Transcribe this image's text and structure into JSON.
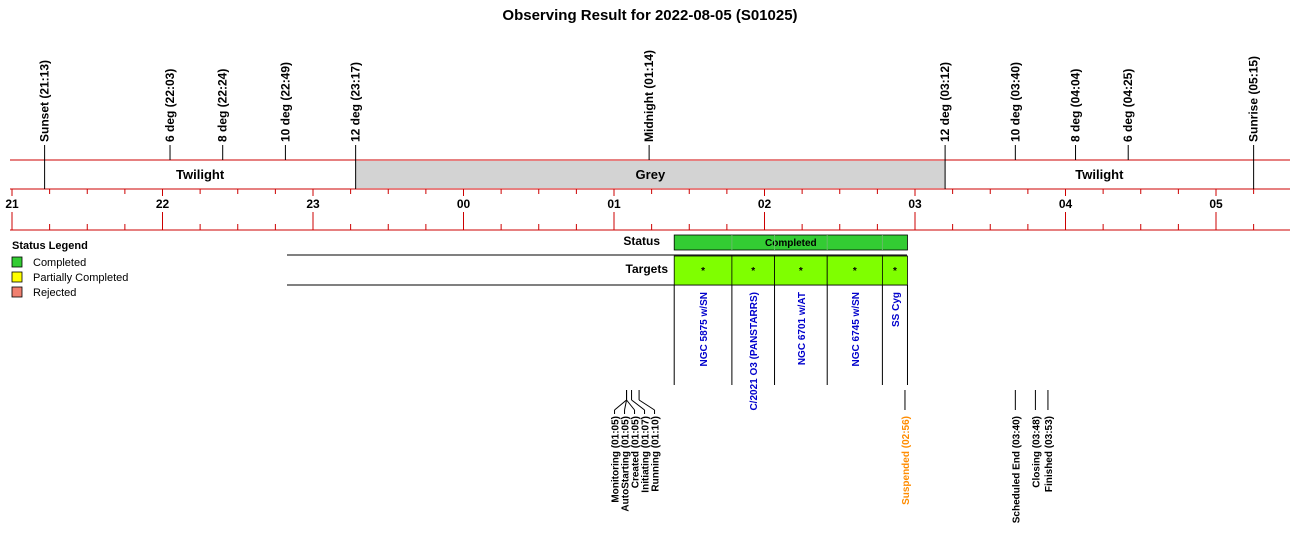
{
  "chart_data": {
    "type": "timeline",
    "title": "Observing Result for 2022-08-05 (S01025)",
    "hours": [
      "21",
      "22",
      "23",
      "00",
      "01",
      "02",
      "03",
      "04",
      "05"
    ],
    "sky_events": [
      {
        "label": "Sunset (21:13)",
        "time": "21:13"
      },
      {
        "label": "6 deg (22:03)",
        "time": "22:03"
      },
      {
        "label": "8 deg (22:24)",
        "time": "22:24"
      },
      {
        "label": "10 deg (22:49)",
        "time": "22:49"
      },
      {
        "label": "12 deg (23:17)",
        "time": "23:17"
      },
      {
        "label": "Midnight (01:14)",
        "time": "01:14"
      },
      {
        "label": "12 deg (03:12)",
        "time": "03:12"
      },
      {
        "label": "10 deg (03:40)",
        "time": "03:40"
      },
      {
        "label": "8 deg (04:04)",
        "time": "04:04"
      },
      {
        "label": "6 deg (04:25)",
        "time": "04:25"
      },
      {
        "label": "Sunrise (05:15)",
        "time": "05:15"
      }
    ],
    "phases": [
      {
        "label": "Twilight",
        "start": "21:13",
        "end": "23:17",
        "color": "#ffffff"
      },
      {
        "label": "Grey",
        "start": "23:17",
        "end": "03:12",
        "color": "#d3d3d3"
      },
      {
        "label": "Twilight",
        "start": "03:12",
        "end": "05:15",
        "color": "#ffffff"
      }
    ],
    "status_row_label": "Status",
    "targets_row_label": "Targets",
    "status_bar": {
      "label": "Completed",
      "start": "01:24",
      "end": "02:57",
      "color": "#33cc33"
    },
    "targets": [
      {
        "name": "NGC 5875 w/SN",
        "start": "01:24",
        "end": "01:47",
        "mark": "*"
      },
      {
        "name": "C/2021 O3 (PANSTARRS)",
        "start": "01:47",
        "end": "02:04",
        "mark": "*"
      },
      {
        "name": "NGC 6701 w/AT",
        "start": "02:04",
        "end": "02:25",
        "mark": "*"
      },
      {
        "name": "NGC 6745 w/SN",
        "start": "02:25",
        "end": "02:47",
        "mark": "*"
      },
      {
        "name": "SS Cyg",
        "start": "02:47",
        "end": "02:57",
        "mark": "*"
      }
    ],
    "target_bar_color": "#7fff00",
    "target_text_color": "#0000cc",
    "legend": {
      "title": "Status Legend",
      "items": [
        {
          "label": "Completed",
          "color": "#33cc33"
        },
        {
          "label": "Partially Completed",
          "color": "#ffff00"
        },
        {
          "label": "Rejected",
          "color": "#f08070"
        }
      ]
    },
    "state_events": [
      {
        "label": "Monitoring (01:05)",
        "time": "01:05",
        "color": "#000000"
      },
      {
        "label": "AutoStarting (01:05)",
        "time": "01:05",
        "color": "#000000"
      },
      {
        "label": "Created (01:05)",
        "time": "01:05",
        "color": "#000000"
      },
      {
        "label": "Initiating (01:07)",
        "time": "01:07",
        "color": "#000000"
      },
      {
        "label": "Running (01:10)",
        "time": "01:10",
        "color": "#000000"
      },
      {
        "label": "Suspended (02:56)",
        "time": "02:56",
        "color": "#ff8c00"
      },
      {
        "label": "Scheduled End (03:40)",
        "time": "03:40",
        "color": "#000000"
      },
      {
        "label": "Closing (03:48)",
        "time": "03:48",
        "color": "#000000"
      },
      {
        "label": "Finished (03:53)",
        "time": "03:53",
        "color": "#000000"
      }
    ],
    "axis_color": "#cc0000"
  }
}
